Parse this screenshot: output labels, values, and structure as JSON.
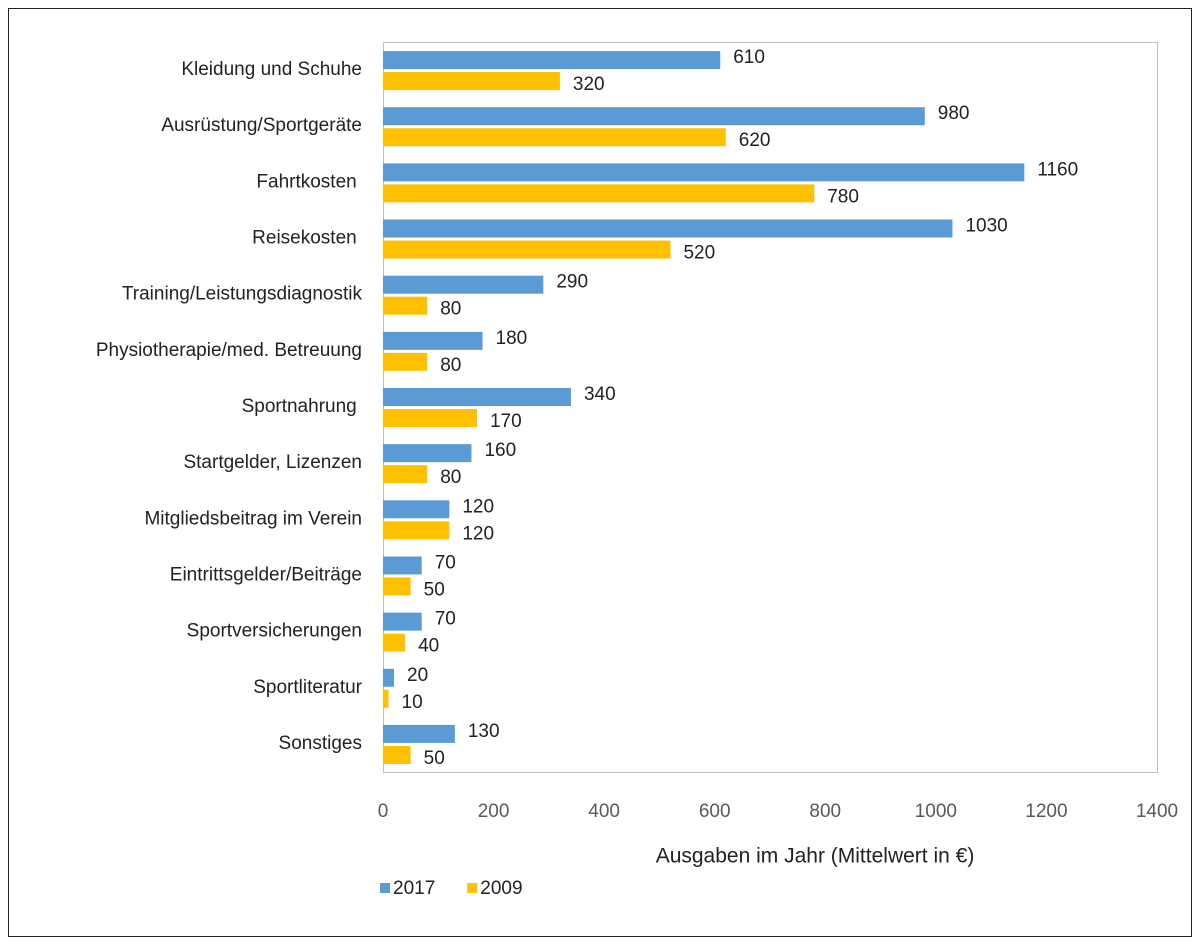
{
  "chart_data": {
    "type": "barh",
    "xlabel": "Ausgaben im Jahr (Mittelwert in €)",
    "categories": [
      "Kleidung und Schuhe",
      "Ausrüstung/Sportgeräte",
      "Fahrtkosten ",
      "Reisekosten ",
      "Training/Leistungsdiagnostik",
      "Physiotherapie/med. Betreuung",
      "Sportnahrung ",
      "Startgelder, Lizenzen",
      "Mitgliedsbeitrag im Verein",
      "Eintrittsgelder/Beiträge",
      "Sportversicherungen",
      "Sportliteratur",
      "Sonstiges"
    ],
    "series": [
      {
        "name": "2017",
        "color": "#5b9bd5",
        "values": [
          610,
          980,
          1160,
          1030,
          290,
          180,
          340,
          160,
          120,
          70,
          70,
          20,
          130
        ]
      },
      {
        "name": "2009",
        "color": "#ffc000",
        "values": [
          320,
          620,
          780,
          520,
          80,
          80,
          170,
          80,
          120,
          50,
          40,
          10,
          50
        ]
      }
    ],
    "xlim": [
      0,
      1400
    ],
    "xticks": [
      0,
      200,
      400,
      600,
      800,
      1000,
      1200,
      1400
    ],
    "grid": false,
    "legend": "bottom-left"
  }
}
